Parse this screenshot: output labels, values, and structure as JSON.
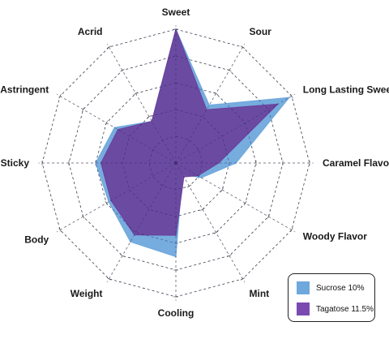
{
  "chart_data": {
    "type": "radar",
    "categories": [
      "Sweet",
      "Sour",
      "Long Lasting Sweet",
      "Caramel Flavor",
      "Woody Flavor",
      "Mint",
      "Cooling",
      "Weight",
      "Body",
      "Sticky",
      "Astringent",
      "Acrid"
    ],
    "rmax": 10,
    "rings": 5,
    "series": [
      {
        "name": "Sucrose 10%",
        "color": "#6fa8dc",
        "values": [
          10.0,
          5.0,
          9.8,
          4.5,
          2.2,
          1.0,
          7.0,
          6.8,
          5.8,
          6.0,
          5.3,
          3.6
        ]
      },
      {
        "name": "Tagatose 11.5%",
        "color": "#6a3d9a",
        "values": [
          10.0,
          4.6,
          8.8,
          3.2,
          1.9,
          1.2,
          5.4,
          6.2,
          5.6,
          5.6,
          5.0,
          3.6
        ]
      }
    ]
  },
  "legend": {
    "items": [
      {
        "label": "Sucrose 10%",
        "color": "#6fa8dc"
      },
      {
        "label": "Tagatose 11.5%",
        "color": "#7b4ab0"
      }
    ]
  }
}
